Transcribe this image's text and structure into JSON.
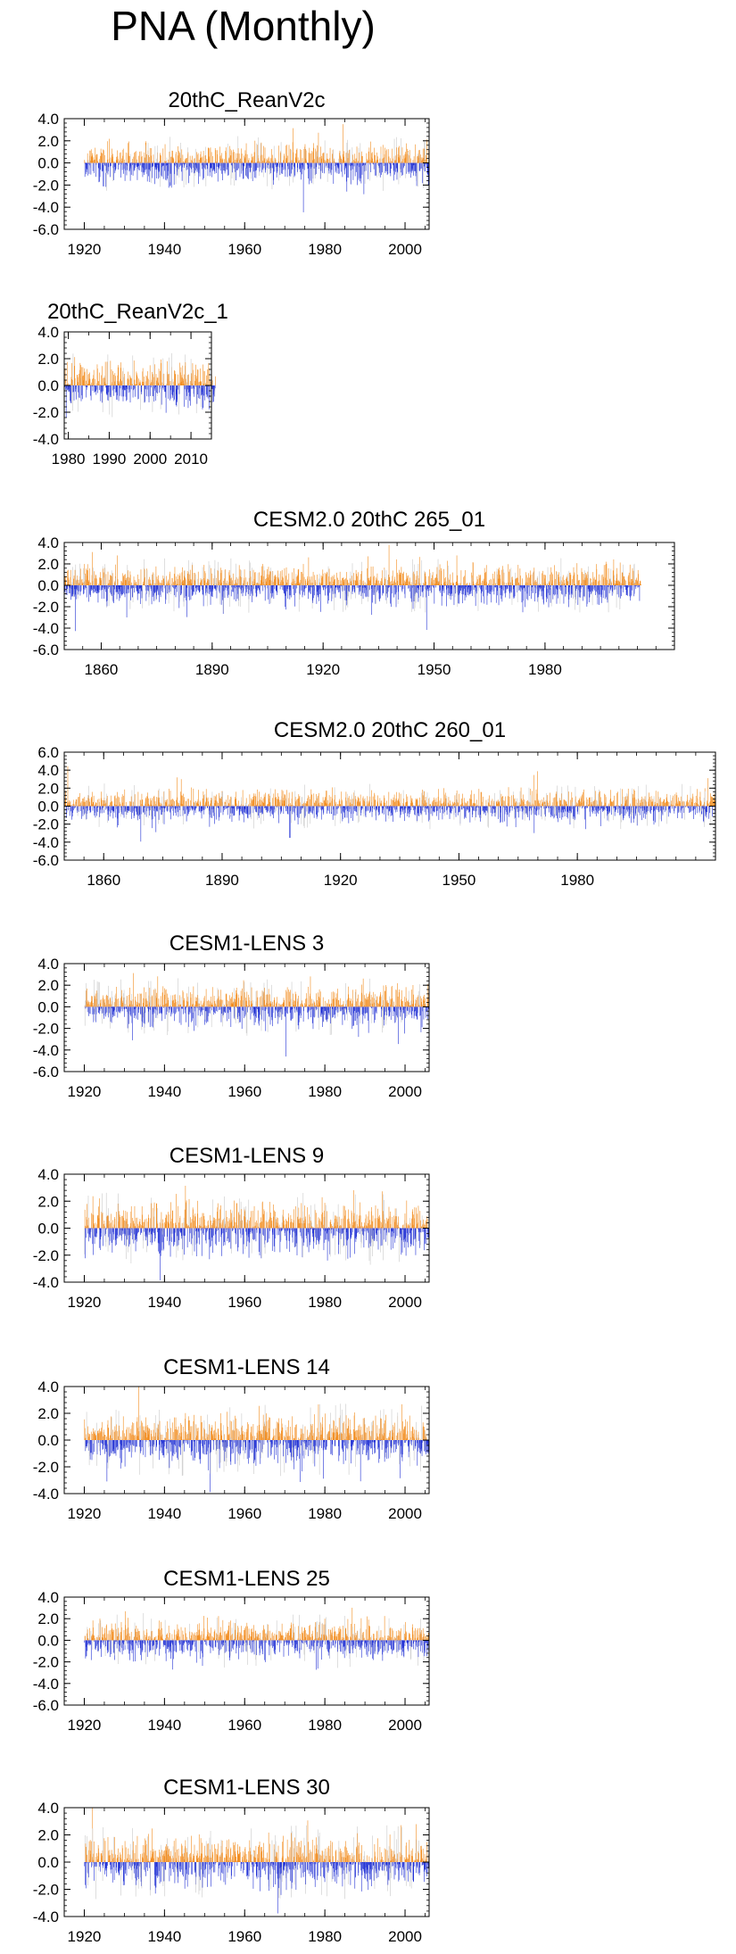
{
  "title": "PNA (Monthly)",
  "colors": {
    "positive": "#f28c1e",
    "negative": "#1f2fd4",
    "faint": "#c8c8c8",
    "axis": "#000000"
  },
  "chart_data": [
    {
      "type": "bar",
      "title": "20thC_ReanV2c",
      "xlim": [
        1915,
        2006
      ],
      "ylim": [
        -6,
        4
      ],
      "yticks": [
        4.0,
        2.0,
        0.0,
        -2.0,
        -4.0,
        -6.0
      ],
      "xticks": [
        1920,
        1940,
        1960,
        1980,
        2000
      ],
      "xticklabels": [
        "1920",
        "1940",
        "1960",
        "1980",
        "2000"
      ],
      "start_year": 1920,
      "end_year": 2005,
      "typical_amplitude": 1.6
    },
    {
      "type": "bar",
      "title": "20thC_ReanV2c_1",
      "xlim": [
        1979,
        2015
      ],
      "ylim": [
        -4,
        4
      ],
      "yticks": [
        4.0,
        2.0,
        0.0,
        -2.0,
        -4.0
      ],
      "xticks": [
        1980,
        1990,
        2000,
        2010
      ],
      "xticklabels": [
        "1980",
        "1990",
        "2000",
        "2010"
      ],
      "start_year": 1979,
      "end_year": 2015,
      "typical_amplitude": 1.6
    },
    {
      "type": "bar",
      "title": "CESM2.0 20thC 265_01",
      "xlim": [
        1850,
        2015
      ],
      "ylim": [
        -6,
        4
      ],
      "yticks": [
        4.0,
        2.0,
        0.0,
        -2.0,
        -4.0,
        -6.0
      ],
      "xticks": [
        1860,
        1890,
        1920,
        1950,
        1980
      ],
      "xticklabels": [
        "1860",
        "1890",
        "1920",
        "1950",
        "1980"
      ],
      "start_year": 1850,
      "end_year": 2005,
      "typical_amplitude": 1.6
    },
    {
      "type": "bar",
      "title": "CESM2.0 20thC 260_01",
      "xlim": [
        1850,
        2015
      ],
      "ylim": [
        -6,
        6
      ],
      "yticks": [
        6.0,
        4.0,
        2.0,
        0.0,
        -2.0,
        -4.0,
        -6.0
      ],
      "xticks": [
        1860,
        1890,
        1920,
        1950,
        1980
      ],
      "xticklabels": [
        "1860",
        "1890",
        "1920",
        "1950",
        "1980"
      ],
      "start_year": 1850,
      "end_year": 2014,
      "typical_amplitude": 1.6
    },
    {
      "type": "bar",
      "title": "CESM1-LENS 3",
      "xlim": [
        1915,
        2006
      ],
      "ylim": [
        -6,
        4
      ],
      "yticks": [
        4.0,
        2.0,
        0.0,
        -2.0,
        -4.0,
        -6.0
      ],
      "xticks": [
        1920,
        1940,
        1960,
        1980,
        2000
      ],
      "xticklabels": [
        "1920",
        "1940",
        "1960",
        "1980",
        "2000"
      ],
      "start_year": 1920,
      "end_year": 2005,
      "typical_amplitude": 1.7
    },
    {
      "type": "bar",
      "title": "CESM1-LENS 9",
      "xlim": [
        1915,
        2006
      ],
      "ylim": [
        -4,
        4
      ],
      "yticks": [
        4.0,
        2.0,
        0.0,
        -2.0,
        -4.0
      ],
      "xticks": [
        1920,
        1940,
        1960,
        1980,
        2000
      ],
      "xticklabels": [
        "1920",
        "1940",
        "1960",
        "1980",
        "2000"
      ],
      "start_year": 1920,
      "end_year": 2005,
      "typical_amplitude": 1.7
    },
    {
      "type": "bar",
      "title": "CESM1-LENS 14",
      "xlim": [
        1915,
        2006
      ],
      "ylim": [
        -4,
        4
      ],
      "yticks": [
        4.0,
        2.0,
        0.0,
        -2.0,
        -4.0
      ],
      "xticks": [
        1920,
        1940,
        1960,
        1980,
        2000
      ],
      "xticklabels": [
        "1920",
        "1940",
        "1960",
        "1980",
        "2000"
      ],
      "start_year": 1920,
      "end_year": 2005,
      "typical_amplitude": 1.7
    },
    {
      "type": "bar",
      "title": "CESM1-LENS 25",
      "xlim": [
        1915,
        2006
      ],
      "ylim": [
        -6,
        4
      ],
      "yticks": [
        4.0,
        2.0,
        0.0,
        -2.0,
        -4.0,
        -6.0
      ],
      "xticks": [
        1920,
        1940,
        1960,
        1980,
        2000
      ],
      "xticklabels": [
        "1920",
        "1940",
        "1960",
        "1980",
        "2000"
      ],
      "start_year": 1920,
      "end_year": 2005,
      "typical_amplitude": 1.6
    },
    {
      "type": "bar",
      "title": "CESM1-LENS 30",
      "xlim": [
        1915,
        2006
      ],
      "ylim": [
        -4,
        4
      ],
      "yticks": [
        4.0,
        2.0,
        0.0,
        -2.0,
        -4.0
      ],
      "xticks": [
        1920,
        1940,
        1960,
        1980,
        2000
      ],
      "xticklabels": [
        "1920",
        "1940",
        "1960",
        "1980",
        "2000"
      ],
      "start_year": 1920,
      "end_year": 2005,
      "typical_amplitude": 1.7
    }
  ]
}
